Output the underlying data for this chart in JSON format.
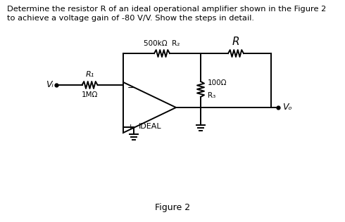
{
  "title_line1": "Determine the resistor R of an ideal operational amplifier shown in the Figure 2",
  "title_line2": "to achieve a voltage gain of -80 V/V. Show the steps in detail.",
  "figure_label": "Figure 2",
  "bg_color": "#ffffff",
  "line_color": "#000000",
  "label_R1": "R₁",
  "label_R1_val": "1MΩ",
  "label_R2": "500kΩ  R₂",
  "label_R3": "100Ω",
  "label_R3_name": "R₃",
  "label_R": "R",
  "label_Vi": "Vᵢ",
  "label_Vo": "Vₒ",
  "label_ideal": "IDEAL",
  "label_minus": "−",
  "label_plus": "+"
}
